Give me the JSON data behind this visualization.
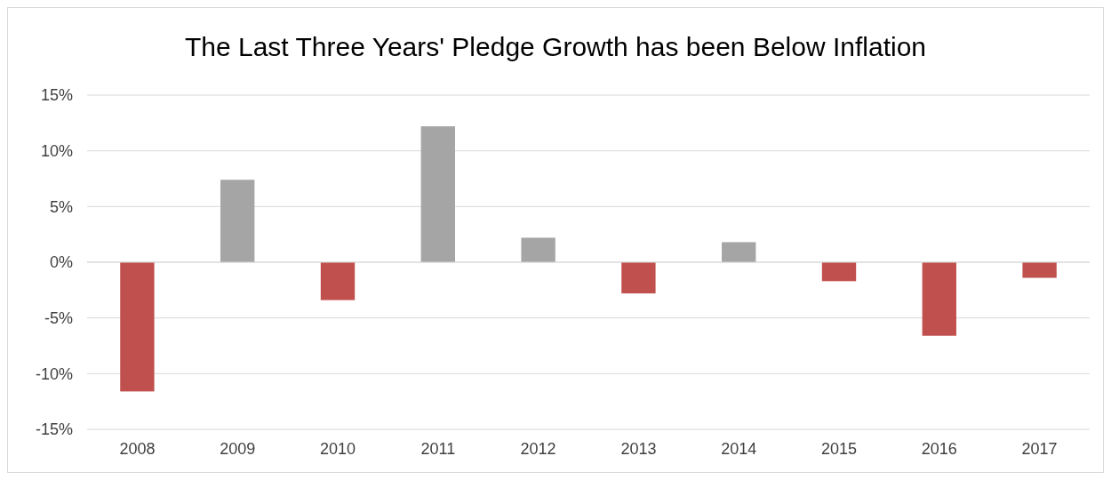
{
  "chart_data": {
    "type": "bar",
    "title": "The Last Three Years' Pledge Growth has been Below Inflation",
    "categories": [
      "2008",
      "2009",
      "2010",
      "2011",
      "2012",
      "2013",
      "2014",
      "2015",
      "2016",
      "2017"
    ],
    "values": [
      -11.6,
      7.4,
      -3.4,
      12.2,
      2.2,
      -2.8,
      1.8,
      -1.7,
      -6.6,
      -1.4
    ],
    "colors": [
      "#c0504d",
      "#a5a5a5",
      "#c0504d",
      "#a5a5a5",
      "#a5a5a5",
      "#c0504d",
      "#a5a5a5",
      "#c0504d",
      "#c0504d",
      "#c0504d"
    ],
    "ylim": [
      -15,
      15
    ],
    "yticks": [
      {
        "value": -15,
        "label": "-15%"
      },
      {
        "value": -10,
        "label": "-10%"
      },
      {
        "value": -5,
        "label": "-5%"
      },
      {
        "value": 0,
        "label": "0%"
      },
      {
        "value": 5,
        "label": "5%"
      },
      {
        "value": 10,
        "label": "10%"
      },
      {
        "value": 15,
        "label": "15%"
      }
    ],
    "grid": "y"
  }
}
